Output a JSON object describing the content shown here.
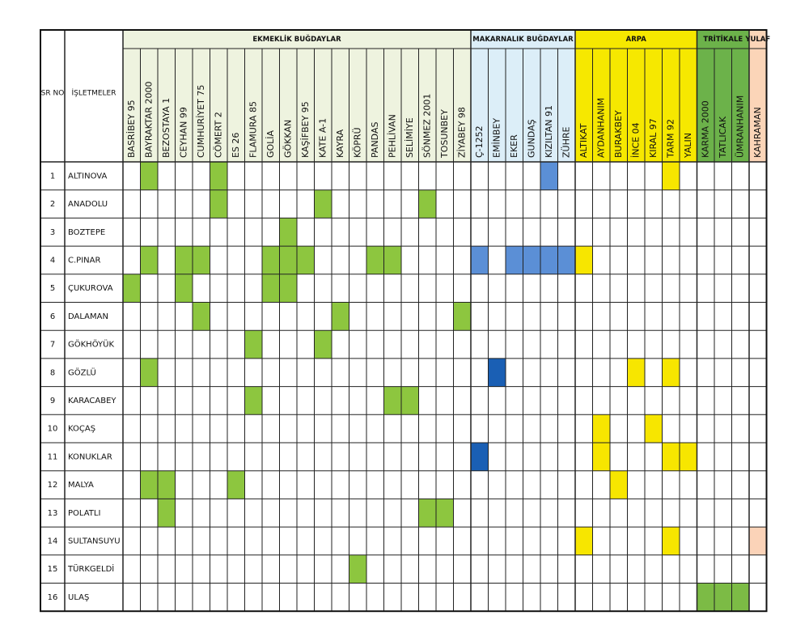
{
  "table": {
    "headers": {
      "sr": "SR NO",
      "farm": "İŞLETMELER"
    },
    "groups": [
      {
        "name": "EKMEKLİK BUĞDAYLAR",
        "bg": "#eef3df",
        "fill": "#8dc63f",
        "varieties": [
          "BASRİBEY 95",
          "BAYRAKTAR 2000",
          "BEZOSTAYA 1",
          "CEYHAN 99",
          "CUMHURİYET 75",
          "CÖMERT 2",
          "ES 26",
          "FLAMURA 85",
          "GOLİA",
          "GÖKKAN",
          "KAŞİFBEY 95",
          "KATE A-1",
          "KAYRA",
          "KÖPRÜ",
          "PANDAS",
          "PEHLİVAN",
          "SELİMİYE",
          "SÖNMEZ 2001",
          "TOSUNBEY",
          "ZİYABEY 98"
        ]
      },
      {
        "name": "MAKARNALIK BUĞDAYLAR",
        "bg": "#dceef8",
        "fill": "#5b8fd6",
        "dark_fill": "#1a5fb4",
        "varieties": [
          "Ç-1252",
          "EMİNBEY",
          "EKER",
          "GUNDAŞ",
          "KIZILTAN 91",
          "ZÜHRE"
        ]
      },
      {
        "name": "ARPA",
        "bg": "#f6e800",
        "fill": "#f7e600",
        "varieties": [
          "ALTIKAT",
          "AYDANHANIM",
          "BURAKBEY",
          "İNCE 04",
          "KIRAL 97",
          "TARM 92",
          "YALIN"
        ]
      },
      {
        "name": "TRİTİKALE",
        "bg": "#6cb24a",
        "fill": "#7cbb45",
        "varieties": [
          "KARMA 2000",
          "TATLICAK",
          "ÜMRANHANIM"
        ]
      },
      {
        "name": "YULAF",
        "bg": "#fbd5b8",
        "fill": "#fbd3b8",
        "varieties": [
          "KAHRAMAN"
        ]
      }
    ],
    "rows": [
      {
        "sr": "1",
        "name": "ALTINOVA",
        "marked": [
          "BAYRAKTAR 2000",
          "CÖMERT 2",
          "KIZILTAN 91",
          "TARM 92"
        ]
      },
      {
        "sr": "2",
        "name": "ANADOLU",
        "marked": [
          "CÖMERT 2",
          "KATE A-1",
          "SÖNMEZ 2001"
        ]
      },
      {
        "sr": "3",
        "name": "BOZTEPE",
        "marked": [
          "GÖKKAN"
        ]
      },
      {
        "sr": "4",
        "name": "C.PINAR",
        "marked": [
          "BAYRAKTAR 2000",
          "CEYHAN 99",
          "CUMHURİYET 75",
          "GOLİA",
          "GÖKKAN",
          "KAŞİFBEY 95",
          "PANDAS",
          "PEHLİVAN",
          "Ç-1252",
          "EKER",
          "GUNDAŞ",
          "KIZILTAN 91",
          "ZÜHRE",
          "ALTIKAT"
        ]
      },
      {
        "sr": "5",
        "name": "ÇUKUROVA",
        "marked": [
          "BASRİBEY 95",
          "CEYHAN 99",
          "GOLİA",
          "GÖKKAN"
        ]
      },
      {
        "sr": "6",
        "name": "DALAMAN",
        "marked": [
          "CUMHURİYET 75",
          "KAYRA",
          "ZİYABEY 98"
        ]
      },
      {
        "sr": "7",
        "name": "GÖKHÖYÜK",
        "marked": [
          "FLAMURA 85",
          "KATE A-1"
        ]
      },
      {
        "sr": "8",
        "name": "GÖZLÜ",
        "marked": [
          "BAYRAKTAR 2000",
          "İNCE 04",
          "TARM 92"
        ],
        "marked_dark": [
          "EMİNBEY"
        ]
      },
      {
        "sr": "9",
        "name": "KARACABEY",
        "marked": [
          "FLAMURA 85",
          "PEHLİVAN",
          "SELİMİYE"
        ]
      },
      {
        "sr": "10",
        "name": "KOÇAŞ",
        "marked": [
          "AYDANHANIM",
          "KIRAL 97"
        ]
      },
      {
        "sr": "11",
        "name": "KONUKLAR",
        "marked": [
          "AYDANHANIM",
          "TARM 92",
          "YALIN"
        ],
        "marked_dark": [
          "Ç-1252"
        ]
      },
      {
        "sr": "12",
        "name": "MALYA",
        "marked": [
          "BAYRAKTAR 2000",
          "BEZOSTAYA 1",
          "ES 26",
          "BURAKBEY"
        ]
      },
      {
        "sr": "13",
        "name": "POLATLI",
        "marked": [
          "BEZOSTAYA 1",
          "SÖNMEZ 2001",
          "TOSUNBEY"
        ]
      },
      {
        "sr": "14",
        "name": "SULTANSUYU",
        "marked": [
          "ALTIKAT",
          "TARM 92",
          "KAHRAMAN"
        ]
      },
      {
        "sr": "15",
        "name": "TÜRKGELDİ",
        "marked": [
          "KÖPRÜ"
        ]
      },
      {
        "sr": "16",
        "name": "ULAŞ",
        "marked": [
          "KARMA 2000",
          "TATLICAK",
          "ÜMRANHANIM"
        ]
      }
    ]
  }
}
